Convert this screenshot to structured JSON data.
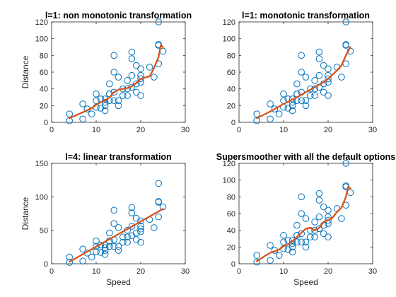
{
  "chart_data": [
    {
      "type": "scatter",
      "title": "l=1: non monotonic transformation",
      "xlabel": "",
      "ylabel": "Distance",
      "xlim": [
        0,
        30
      ],
      "ylim": [
        0,
        120
      ],
      "xticks": [
        0,
        10,
        20,
        30
      ],
      "yticks": [
        0,
        20,
        40,
        60,
        80,
        100,
        120
      ],
      "grid": false,
      "colors": {
        "points": "#0072BD",
        "line": "#D95319"
      },
      "points": {
        "x": [
          4,
          4,
          7,
          7,
          8,
          9,
          10,
          10,
          10,
          11,
          11,
          12,
          12,
          12,
          12,
          13,
          13,
          13,
          13,
          14,
          14,
          14,
          14,
          15,
          15,
          15,
          16,
          16,
          17,
          17,
          17,
          18,
          18,
          18,
          18,
          19,
          19,
          19,
          20,
          20,
          20,
          20,
          20,
          22,
          23,
          24,
          24,
          24,
          24,
          25
        ],
        "y": [
          2,
          10,
          4,
          22,
          16,
          10,
          18,
          26,
          34,
          17,
          28,
          14,
          20,
          24,
          28,
          26,
          34,
          34,
          46,
          26,
          36,
          60,
          80,
          20,
          26,
          54,
          32,
          40,
          32,
          40,
          50,
          42,
          56,
          76,
          84,
          36,
          46,
          68,
          32,
          48,
          52,
          56,
          64,
          66,
          54,
          70,
          92,
          93,
          120,
          85
        ]
      },
      "fit": {
        "x": [
          4,
          7,
          9,
          10,
          11,
          12,
          13,
          14,
          15,
          16,
          17,
          18,
          19,
          20,
          22,
          23,
          24,
          24.5,
          25
        ],
        "y": [
          5,
          12,
          17,
          21,
          24,
          26,
          30,
          36,
          39,
          40,
          41,
          43,
          47,
          52,
          55,
          65,
          78,
          92,
          90
        ]
      }
    },
    {
      "type": "scatter",
      "title": "l=1: monotonic transformation",
      "xlabel": "",
      "ylabel": "",
      "xlim": [
        0,
        30
      ],
      "ylim": [
        0,
        120
      ],
      "xticks": [
        0,
        10,
        20,
        30
      ],
      "yticks": [
        0,
        20,
        40,
        60,
        80,
        100,
        120
      ],
      "grid": false,
      "colors": {
        "points": "#0072BD",
        "line": "#D95319"
      },
      "points": {
        "x": [
          4,
          4,
          7,
          7,
          8,
          9,
          10,
          10,
          10,
          11,
          11,
          12,
          12,
          12,
          12,
          13,
          13,
          13,
          13,
          14,
          14,
          14,
          14,
          15,
          15,
          15,
          16,
          16,
          17,
          17,
          17,
          18,
          18,
          18,
          18,
          19,
          19,
          19,
          20,
          20,
          20,
          20,
          20,
          22,
          23,
          24,
          24,
          24,
          24,
          25
        ],
        "y": [
          2,
          10,
          4,
          22,
          16,
          10,
          18,
          26,
          34,
          17,
          28,
          14,
          20,
          24,
          28,
          26,
          34,
          34,
          46,
          26,
          36,
          60,
          80,
          20,
          26,
          54,
          32,
          40,
          32,
          40,
          50,
          42,
          56,
          76,
          84,
          36,
          46,
          68,
          32,
          48,
          52,
          56,
          64,
          66,
          54,
          70,
          92,
          93,
          120,
          85
        ]
      },
      "fit": {
        "x": [
          4,
          7,
          10,
          13,
          15,
          17,
          19,
          20,
          22,
          23,
          24,
          25
        ],
        "y": [
          5,
          13,
          22,
          30,
          36,
          42,
          48,
          52,
          62,
          68,
          80,
          90
        ]
      }
    },
    {
      "type": "scatter",
      "title": "l=4: linear transformation",
      "xlabel": "Speed",
      "ylabel": "Distance",
      "xlim": [
        0,
        30
      ],
      "ylim": [
        0,
        150
      ],
      "xticks": [
        0,
        10,
        20,
        30
      ],
      "yticks": [
        0,
        50,
        100,
        150
      ],
      "grid": false,
      "colors": {
        "points": "#0072BD",
        "line": "#D95319"
      },
      "points": {
        "x": [
          4,
          4,
          7,
          7,
          8,
          9,
          10,
          10,
          10,
          11,
          11,
          12,
          12,
          12,
          12,
          13,
          13,
          13,
          13,
          14,
          14,
          14,
          14,
          15,
          15,
          15,
          16,
          16,
          17,
          17,
          17,
          18,
          18,
          18,
          18,
          19,
          19,
          19,
          20,
          20,
          20,
          20,
          20,
          22,
          23,
          24,
          24,
          24,
          24,
          25
        ],
        "y": [
          2,
          10,
          4,
          22,
          16,
          10,
          18,
          26,
          34,
          17,
          28,
          14,
          20,
          24,
          28,
          26,
          34,
          34,
          46,
          26,
          36,
          60,
          80,
          20,
          26,
          54,
          32,
          40,
          32,
          40,
          50,
          42,
          56,
          76,
          84,
          36,
          46,
          68,
          32,
          48,
          52,
          56,
          64,
          66,
          54,
          70,
          92,
          93,
          120,
          85
        ]
      },
      "fit": {
        "x": [
          4,
          25
        ],
        "y": [
          3,
          82
        ]
      }
    },
    {
      "type": "scatter",
      "title": "Supersmoother with all the default options",
      "xlabel": "Speed",
      "ylabel": "",
      "xlim": [
        0,
        30
      ],
      "ylim": [
        0,
        120
      ],
      "xticks": [
        0,
        10,
        20,
        30
      ],
      "yticks": [
        0,
        20,
        40,
        60,
        80,
        100,
        120
      ],
      "grid": false,
      "colors": {
        "points": "#0072BD",
        "line": "#D95319"
      },
      "points": {
        "x": [
          4,
          4,
          7,
          7,
          8,
          9,
          10,
          10,
          10,
          11,
          11,
          12,
          12,
          12,
          12,
          13,
          13,
          13,
          13,
          14,
          14,
          14,
          14,
          15,
          15,
          15,
          16,
          16,
          17,
          17,
          17,
          18,
          18,
          18,
          18,
          19,
          19,
          19,
          20,
          20,
          20,
          20,
          20,
          22,
          23,
          24,
          24,
          24,
          24,
          25
        ],
        "y": [
          2,
          10,
          4,
          22,
          16,
          10,
          18,
          26,
          34,
          17,
          28,
          14,
          20,
          24,
          28,
          26,
          34,
          34,
          46,
          26,
          36,
          60,
          80,
          20,
          26,
          54,
          32,
          40,
          32,
          40,
          50,
          42,
          56,
          76,
          84,
          36,
          46,
          68,
          32,
          48,
          52,
          56,
          64,
          66,
          54,
          70,
          92,
          93,
          120,
          85
        ]
      },
      "fit": {
        "x": [
          4,
          6,
          7,
          8,
          9,
          10,
          11,
          12,
          13,
          14,
          15,
          16,
          17,
          18,
          19,
          20,
          21,
          22,
          23,
          24,
          24.5,
          25
        ],
        "y": [
          3,
          10,
          13,
          15,
          17,
          21,
          23,
          27,
          32,
          37,
          42,
          43,
          40,
          43,
          50,
          52,
          55,
          62,
          67,
          80,
          92,
          90
        ]
      }
    }
  ]
}
